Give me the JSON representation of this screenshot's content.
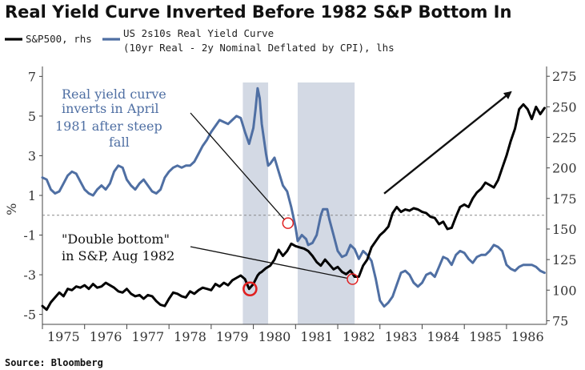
{
  "chart_data": {
    "type": "line",
    "title": "Real Yield Curve Inverted Before 1982 S&P Bottom In",
    "ylabel_left": "%",
    "left_axis": {
      "min": -5.5,
      "max": 7.5,
      "ticks": [
        7,
        5,
        3,
        1,
        -1,
        -3,
        -5
      ],
      "tick_labels": [
        "7",
        "5",
        "3",
        "1",
        "-1",
        "-3",
        "-5"
      ]
    },
    "right_axis": {
      "min": 72,
      "max": 283,
      "ticks": [
        275,
        250,
        225,
        200,
        175,
        150,
        125,
        100,
        75
      ],
      "tick_labels": [
        "275",
        "250",
        "225",
        "200",
        "175",
        "150",
        "125",
        "100",
        "75"
      ]
    },
    "x_axis": {
      "min": 1975.0,
      "max": 1986.95,
      "ticks": [
        1975,
        1976,
        1977,
        1978,
        1979,
        1980,
        1981,
        1982,
        1983,
        1984,
        1985,
        1986
      ],
      "tick_labels": [
        "1975",
        "1976",
        "1977",
        "1978",
        "1979",
        "1980",
        "1981",
        "1982",
        "1983",
        "1984",
        "1985",
        "1986"
      ]
    },
    "reference_line_y": 0,
    "recessions": [
      [
        1979.75,
        1980.35
      ],
      [
        1981.05,
        1982.4
      ]
    ],
    "legend": [
      {
        "label": "S&P500, rhs",
        "color": "#000000"
      },
      {
        "label": "US 2s10s Real Yield Curve",
        "label2": "(10yr Real - 2y Nominal Deflated by CPI), lhs",
        "color": "#4f6fa3"
      }
    ],
    "series": [
      {
        "name": "US 2s10s Real Yield Curve",
        "axis": "left",
        "color": "#4f6fa3",
        "x": [
          1975.0,
          1975.1,
          1975.2,
          1975.3,
          1975.4,
          1975.5,
          1975.6,
          1975.7,
          1975.8,
          1975.9,
          1976.0,
          1976.1,
          1976.2,
          1976.3,
          1976.4,
          1976.5,
          1976.6,
          1976.7,
          1976.8,
          1976.9,
          1977.0,
          1977.1,
          1977.2,
          1977.3,
          1977.4,
          1977.5,
          1977.6,
          1977.7,
          1977.8,
          1977.9,
          1978.0,
          1978.1,
          1978.2,
          1978.3,
          1978.4,
          1978.5,
          1978.6,
          1978.7,
          1978.8,
          1978.9,
          1979.0,
          1979.1,
          1979.2,
          1979.3,
          1979.4,
          1979.5,
          1979.6,
          1979.7,
          1979.8,
          1979.9,
          1980.0,
          1980.05,
          1980.1,
          1980.15,
          1980.2,
          1980.3,
          1980.35,
          1980.4,
          1980.5,
          1980.6,
          1980.7,
          1980.8,
          1980.9,
          1981.0,
          1981.05,
          1981.15,
          1981.25,
          1981.3,
          1981.4,
          1981.5,
          1981.6,
          1981.65,
          1981.75,
          1981.8,
          1981.9,
          1982.0,
          1982.1,
          1982.2,
          1982.3,
          1982.4,
          1982.5,
          1982.6,
          1982.7,
          1982.8,
          1982.9,
          1983.0,
          1983.1,
          1983.2,
          1983.3,
          1983.4,
          1983.5,
          1983.6,
          1983.7,
          1983.8,
          1983.9,
          1984.0,
          1984.1,
          1984.2,
          1984.3,
          1984.4,
          1984.5,
          1984.6,
          1984.7,
          1984.8,
          1984.9,
          1985.0,
          1985.1,
          1985.2,
          1985.3,
          1985.4,
          1985.5,
          1985.6,
          1985.7,
          1985.8,
          1985.9,
          1986.0,
          1986.1,
          1986.2,
          1986.3,
          1986.4,
          1986.5,
          1986.6,
          1986.7,
          1986.8,
          1986.9
        ],
        "values": [
          1.9,
          1.8,
          1.3,
          1.1,
          1.2,
          1.6,
          2.0,
          2.2,
          2.1,
          1.7,
          1.3,
          1.1,
          1.0,
          1.3,
          1.5,
          1.3,
          1.6,
          2.2,
          2.5,
          2.4,
          1.8,
          1.5,
          1.3,
          1.6,
          1.8,
          1.5,
          1.2,
          1.1,
          1.3,
          1.9,
          2.2,
          2.4,
          2.5,
          2.4,
          2.5,
          2.5,
          2.7,
          3.1,
          3.5,
          3.8,
          4.2,
          4.5,
          4.8,
          4.7,
          4.6,
          4.8,
          5.0,
          4.9,
          4.2,
          3.6,
          4.4,
          5.3,
          6.4,
          5.9,
          4.6,
          3.1,
          2.5,
          2.6,
          2.9,
          2.2,
          1.5,
          1.2,
          0.4,
          -0.6,
          -1.3,
          -1.0,
          -1.2,
          -1.5,
          -1.4,
          -1.0,
          0.0,
          0.3,
          0.3,
          -0.2,
          -1.0,
          -1.8,
          -2.1,
          -2.0,
          -1.5,
          -1.7,
          -2.2,
          -1.8,
          -2.0,
          -2.3,
          -3.2,
          -4.3,
          -4.6,
          -4.4,
          -4.1,
          -3.5,
          -2.9,
          -2.8,
          -3.0,
          -3.4,
          -3.6,
          -3.4,
          -3.0,
          -2.9,
          -3.1,
          -2.6,
          -2.1,
          -2.2,
          -2.5,
          -2.0,
          -1.8,
          -1.9,
          -2.2,
          -2.4,
          -2.1,
          -2.0,
          -2.0,
          -1.8,
          -1.5,
          -1.6,
          -1.8,
          -2.5,
          -2.7,
          -2.8,
          -2.6,
          -2.5,
          -2.5,
          -2.5,
          -2.6,
          -2.8,
          -2.9
        ]
      },
      {
        "name": "S&P500",
        "axis": "right",
        "color": "#000000",
        "x": [
          1975.0,
          1975.1,
          1975.2,
          1975.3,
          1975.4,
          1975.5,
          1975.6,
          1975.7,
          1975.8,
          1975.9,
          1976.0,
          1976.1,
          1976.2,
          1976.3,
          1976.4,
          1976.5,
          1976.6,
          1976.7,
          1976.8,
          1976.9,
          1977.0,
          1977.1,
          1977.2,
          1977.3,
          1977.4,
          1977.5,
          1977.6,
          1977.7,
          1977.8,
          1977.9,
          1978.0,
          1978.1,
          1978.2,
          1978.3,
          1978.4,
          1978.5,
          1978.6,
          1978.7,
          1978.8,
          1978.9,
          1979.0,
          1979.1,
          1979.2,
          1979.3,
          1979.4,
          1979.5,
          1979.6,
          1979.7,
          1979.8,
          1979.9,
          1980.0,
          1980.1,
          1980.15,
          1980.2,
          1980.3,
          1980.4,
          1980.5,
          1980.6,
          1980.7,
          1980.8,
          1980.9,
          1981.0,
          1981.1,
          1981.2,
          1981.3,
          1981.4,
          1981.5,
          1981.6,
          1981.7,
          1981.8,
          1981.9,
          1982.0,
          1982.1,
          1982.2,
          1982.3,
          1982.4,
          1982.5,
          1982.6,
          1982.7,
          1982.8,
          1982.9,
          1983.0,
          1983.1,
          1983.2,
          1983.3,
          1983.4,
          1983.5,
          1983.6,
          1983.7,
          1983.8,
          1983.9,
          1984.0,
          1984.1,
          1984.2,
          1984.3,
          1984.4,
          1984.5,
          1984.6,
          1984.7,
          1984.8,
          1984.9,
          1985.0,
          1985.1,
          1985.2,
          1985.3,
          1985.4,
          1985.5,
          1985.6,
          1985.7,
          1985.8,
          1985.9,
          1986.0,
          1986.1,
          1986.2,
          1986.3,
          1986.4,
          1986.5,
          1986.6,
          1986.7,
          1986.8,
          1986.9
        ],
        "values": [
          87,
          84,
          90,
          94,
          98,
          95,
          101,
          100,
          103,
          102,
          104,
          101,
          105,
          102,
          103,
          106,
          104,
          102,
          99,
          98,
          101,
          97,
          95,
          96,
          93,
          96,
          95,
          91,
          88,
          87,
          93,
          98,
          97,
          95,
          94,
          99,
          97,
          100,
          102,
          101,
          100,
          105,
          103,
          106,
          104,
          108,
          110,
          112,
          109,
          101,
          105,
          112,
          114,
          115,
          118,
          120,
          125,
          133,
          128,
          132,
          138,
          136,
          135,
          134,
          132,
          128,
          123,
          120,
          125,
          121,
          117,
          119,
          115,
          113,
          116,
          111,
          111,
          120,
          125,
          135,
          140,
          145,
          148,
          152,
          163,
          168,
          164,
          166,
          165,
          167,
          166,
          164,
          163,
          160,
          159,
          154,
          156,
          150,
          151,
          160,
          168,
          170,
          168,
          175,
          180,
          183,
          188,
          186,
          184,
          190,
          200,
          210,
          222,
          232,
          248,
          252,
          248,
          240,
          250,
          244,
          249
        ]
      }
    ],
    "annotations": [
      {
        "lines": [
          "Real yield curve",
          "inverts in April",
          "1981 after steep",
          "fall"
        ],
        "color": "#4f6fa3",
        "target": {
          "x": 1980.82,
          "axis": "left",
          "y": -0.4
        }
      },
      {
        "lines": [
          "\"Double bottom\"",
          "in S&P, Aug 1982"
        ],
        "color": "#111111",
        "target": {
          "x": 1982.35,
          "axis": "right",
          "y": 109
        }
      },
      {
        "type": "circle",
        "x": 1979.92,
        "axis": "right",
        "y": 101,
        "color": "#e02020"
      },
      {
        "type": "arrow",
        "from": {
          "x": 1983.1,
          "axis": "right",
          "y": 179
        },
        "to": {
          "x": 1986.1,
          "axis": "right",
          "y": 262
        }
      }
    ]
  },
  "source": "Source: Bloomberg"
}
